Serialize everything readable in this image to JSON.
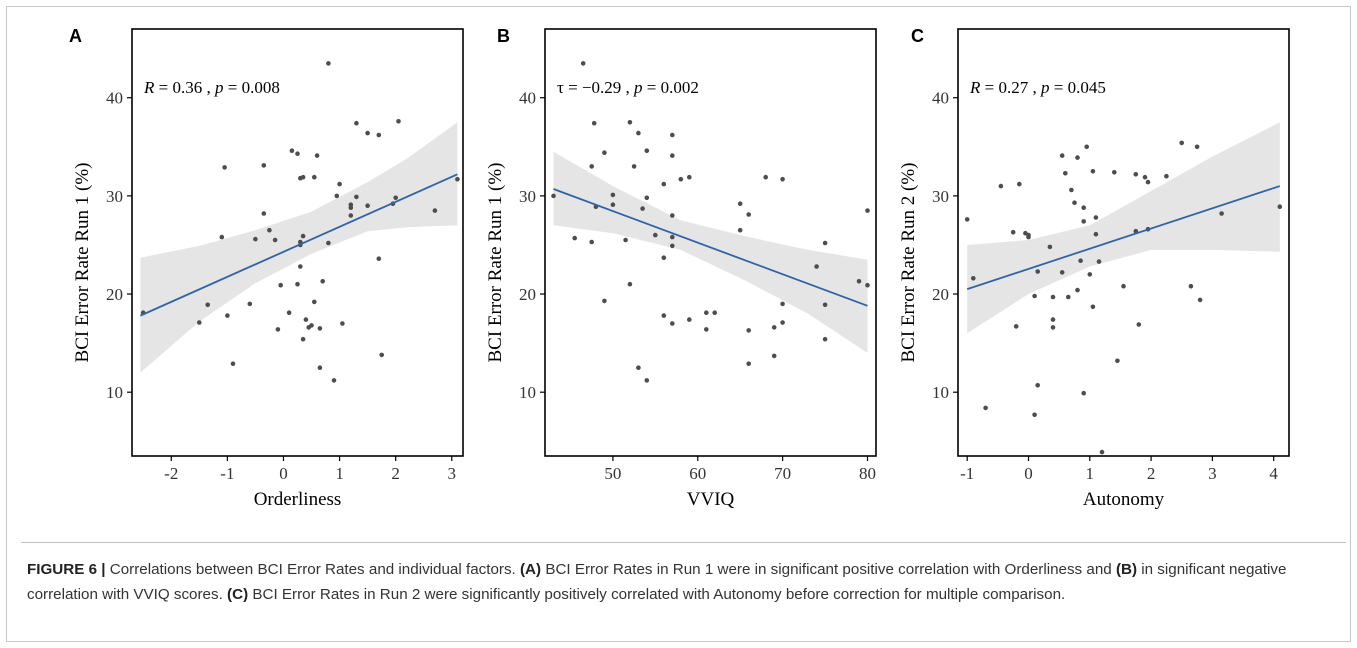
{
  "figure": {
    "caption_label": "FIGURE 6 |",
    "caption_parts": [
      {
        "t": " Correlations between BCI Error Rates and individual factors. "
      },
      {
        "t": "(A)",
        "b": true
      },
      {
        "t": " BCI Error Rates in Run 1 were in significant positive correlation with Orderliness and "
      },
      {
        "t": "(B)",
        "b": true
      },
      {
        "t": " in significant negative correlation with VVIQ scores. "
      },
      {
        "t": "(C)",
        "b": true
      },
      {
        "t": " BCI Error Rates in Run 2 were significantly positively correlated with Autonomy before correction for multiple comparison."
      }
    ]
  },
  "colors": {
    "point": "#4d4d4d",
    "fit_line": "#2f64a7",
    "ci_band": "#e5e5e5",
    "axis": "#000000"
  },
  "chart_data": [
    {
      "panel": "A",
      "type": "scatter",
      "xlabel": "Orderliness",
      "ylabel": "BCI Error Rate Run 1 (%)",
      "stat_sym": "R",
      "stat_val": "= 0.36 ,",
      "p_sym": "p",
      "p_val": "= 0.008",
      "xlim": [
        -2.7,
        3.2
      ],
      "ylim": [
        3.5,
        47
      ],
      "xticks": [
        -2,
        -1,
        0,
        1,
        2,
        3
      ],
      "xtick_labels": [
        "-2",
        "-1",
        "0",
        "1",
        "2",
        "3"
      ],
      "yticks": [
        10,
        20,
        30,
        40
      ],
      "ytick_labels": [
        "10",
        "20",
        "30",
        "40"
      ],
      "fit": {
        "x": [
          -2.55,
          3.1
        ],
        "y": [
          17.8,
          32.2
        ]
      },
      "ci": {
        "x": [
          -2.55,
          -1.5,
          -0.5,
          0.5,
          1.5,
          2.2,
          3.1
        ],
        "lower": [
          12.0,
          17.2,
          21.1,
          24.1,
          26.4,
          26.8,
          27.0
        ],
        "upper": [
          23.7,
          24.9,
          26.5,
          28.4,
          31.4,
          33.8,
          37.5
        ]
      },
      "points": [
        [
          -2.5,
          18.1
        ],
        [
          -1.5,
          17.1
        ],
        [
          -1.35,
          18.9
        ],
        [
          -1.1,
          25.8
        ],
        [
          -1.05,
          32.9
        ],
        [
          -1.0,
          17.8
        ],
        [
          -0.9,
          12.9
        ],
        [
          -0.6,
          19.0
        ],
        [
          -0.5,
          25.6
        ],
        [
          -0.35,
          33.1
        ],
        [
          -0.35,
          28.2
        ],
        [
          -0.25,
          26.5
        ],
        [
          -0.15,
          25.5
        ],
        [
          -0.1,
          16.4
        ],
        [
          -0.05,
          20.9
        ],
        [
          0.1,
          18.1
        ],
        [
          0.15,
          34.6
        ],
        [
          0.25,
          34.3
        ],
        [
          0.25,
          21.0
        ],
        [
          0.3,
          22.8
        ],
        [
          0.3,
          31.8
        ],
        [
          0.3,
          25.0
        ],
        [
          0.3,
          25.3
        ],
        [
          0.35,
          15.4
        ],
        [
          0.35,
          25.9
        ],
        [
          0.35,
          31.9
        ],
        [
          0.4,
          17.4
        ],
        [
          0.45,
          16.6
        ],
        [
          0.5,
          16.8
        ],
        [
          0.55,
          19.2
        ],
        [
          0.55,
          31.9
        ],
        [
          0.6,
          34.1
        ],
        [
          0.65,
          16.5
        ],
        [
          0.65,
          12.5
        ],
        [
          0.7,
          21.3
        ],
        [
          0.8,
          25.2
        ],
        [
          0.8,
          43.5
        ],
        [
          0.9,
          11.2
        ],
        [
          0.95,
          30.0
        ],
        [
          1.0,
          31.2
        ],
        [
          1.05,
          17.0
        ],
        [
          1.2,
          28.8
        ],
        [
          1.2,
          29.1
        ],
        [
          1.2,
          28.0
        ],
        [
          1.3,
          37.4
        ],
        [
          1.3,
          29.9
        ],
        [
          1.5,
          36.4
        ],
        [
          1.5,
          29.0
        ],
        [
          1.7,
          36.2
        ],
        [
          1.7,
          23.6
        ],
        [
          1.75,
          13.8
        ],
        [
          1.95,
          29.2
        ],
        [
          2.0,
          29.8
        ],
        [
          2.05,
          37.6
        ],
        [
          2.7,
          28.5
        ],
        [
          3.1,
          31.7
        ]
      ]
    },
    {
      "panel": "B",
      "type": "scatter",
      "xlabel": "VVIQ",
      "ylabel": "BCI Error Rate Run 1 (%)",
      "stat_sym": "τ",
      "stat_val": "= −0.29 ,",
      "p_sym": "p",
      "p_val": "= 0.002",
      "xlim": [
        42,
        81
      ],
      "ylim": [
        3.5,
        47
      ],
      "xticks": [
        50,
        60,
        70,
        80
      ],
      "xtick_labels": [
        "50",
        "60",
        "70",
        "80"
      ],
      "yticks": [
        10,
        20,
        30,
        40
      ],
      "ytick_labels": [
        "10",
        "20",
        "30",
        "40"
      ],
      "fit": {
        "x": [
          43,
          80
        ],
        "y": [
          30.7,
          18.8
        ]
      },
      "ci": {
        "x": [
          43,
          50,
          58,
          66,
          73,
          80
        ],
        "lower": [
          27.0,
          26.2,
          24.5,
          21.2,
          18.0,
          14.0
        ],
        "upper": [
          34.5,
          31.0,
          27.5,
          25.8,
          24.5,
          23.5
        ]
      },
      "points": [
        [
          43,
          30.0
        ],
        [
          45.5,
          25.7
        ],
        [
          46.5,
          43.5
        ],
        [
          47.5,
          25.3
        ],
        [
          47.5,
          33.0
        ],
        [
          47.8,
          37.4
        ],
        [
          48.0,
          28.9
        ],
        [
          49.0,
          19.3
        ],
        [
          49.0,
          34.4
        ],
        [
          50.0,
          30.1
        ],
        [
          50.0,
          29.1
        ],
        [
          51.5,
          25.5
        ],
        [
          52.0,
          37.5
        ],
        [
          52.0,
          21.0
        ],
        [
          52.5,
          33.0
        ],
        [
          53.0,
          36.4
        ],
        [
          53.0,
          12.5
        ],
        [
          53.5,
          28.7
        ],
        [
          54.0,
          34.6
        ],
        [
          54.0,
          29.8
        ],
        [
          54.0,
          11.2
        ],
        [
          55.0,
          26.0
        ],
        [
          56.0,
          31.2
        ],
        [
          56.0,
          23.7
        ],
        [
          56.0,
          17.8
        ],
        [
          57.0,
          36.2
        ],
        [
          57.0,
          34.1
        ],
        [
          57.0,
          28.0
        ],
        [
          57.0,
          25.8
        ],
        [
          57.0,
          24.9
        ],
        [
          57.0,
          17.0
        ],
        [
          58.0,
          31.7
        ],
        [
          59.0,
          31.9
        ],
        [
          59.0,
          17.4
        ],
        [
          61.0,
          18.1
        ],
        [
          61.0,
          16.4
        ],
        [
          62.0,
          18.1
        ],
        [
          65.0,
          29.2
        ],
        [
          65.0,
          26.5
        ],
        [
          66.0,
          28.1
        ],
        [
          66.0,
          16.3
        ],
        [
          66.0,
          12.9
        ],
        [
          68.0,
          31.9
        ],
        [
          69.0,
          16.6
        ],
        [
          69.0,
          13.7
        ],
        [
          70.0,
          31.7
        ],
        [
          70.0,
          19.0
        ],
        [
          70.0,
          17.1
        ],
        [
          74.0,
          22.8
        ],
        [
          75.0,
          25.2
        ],
        [
          75.0,
          18.9
        ],
        [
          75.0,
          15.4
        ],
        [
          79.0,
          21.3
        ],
        [
          80.0,
          28.5
        ],
        [
          80.0,
          20.9
        ]
      ]
    },
    {
      "panel": "C",
      "type": "scatter",
      "xlabel": "Autonomy",
      "ylabel": "BCI Error Rate Run 2 (%)",
      "stat_sym": "R",
      "stat_val": "= 0.27 ,",
      "p_sym": "p",
      "p_val": "= 0.045",
      "xlim": [
        -1.15,
        4.25
      ],
      "ylim": [
        3.5,
        47
      ],
      "xticks": [
        -1,
        0,
        1,
        2,
        3,
        4
      ],
      "xtick_labels": [
        "-1",
        "0",
        "1",
        "2",
        "3",
        "4"
      ],
      "yticks": [
        10,
        20,
        30,
        40
      ],
      "ytick_labels": [
        "10",
        "20",
        "30",
        "40"
      ],
      "fit": {
        "x": [
          -1.0,
          4.1
        ],
        "y": [
          20.5,
          31.0
        ]
      },
      "ci": {
        "x": [
          -1.0,
          0.0,
          1.0,
          2.0,
          3.0,
          4.1
        ],
        "lower": [
          16.0,
          20.0,
          22.8,
          24.5,
          24.5,
          24.3
        ],
        "upper": [
          25.0,
          25.5,
          27.0,
          30.5,
          34.0,
          37.5
        ]
      },
      "points": [
        [
          -1.0,
          27.6
        ],
        [
          -0.9,
          21.6
        ],
        [
          -0.7,
          8.4
        ],
        [
          -0.45,
          31.0
        ],
        [
          -0.25,
          26.3
        ],
        [
          -0.2,
          16.7
        ],
        [
          -0.15,
          31.2
        ],
        [
          -0.05,
          26.2
        ],
        [
          0.0,
          26.0
        ],
        [
          0.0,
          25.8
        ],
        [
          0.1,
          19.8
        ],
        [
          0.1,
          7.7
        ],
        [
          0.15,
          10.7
        ],
        [
          0.15,
          22.3
        ],
        [
          0.35,
          24.8
        ],
        [
          0.4,
          19.7
        ],
        [
          0.4,
          17.4
        ],
        [
          0.4,
          16.6
        ],
        [
          0.55,
          34.1
        ],
        [
          0.55,
          22.2
        ],
        [
          0.6,
          32.3
        ],
        [
          0.65,
          19.7
        ],
        [
          0.7,
          30.6
        ],
        [
          0.75,
          29.3
        ],
        [
          0.8,
          20.4
        ],
        [
          0.8,
          33.9
        ],
        [
          0.85,
          23.4
        ],
        [
          0.9,
          28.8
        ],
        [
          0.9,
          27.4
        ],
        [
          0.9,
          9.9
        ],
        [
          0.95,
          35.0
        ],
        [
          1.0,
          22.0
        ],
        [
          1.05,
          32.5
        ],
        [
          1.05,
          18.7
        ],
        [
          1.1,
          27.8
        ],
        [
          1.1,
          26.1
        ],
        [
          1.15,
          23.3
        ],
        [
          1.2,
          3.9
        ],
        [
          1.4,
          32.4
        ],
        [
          1.45,
          13.2
        ],
        [
          1.55,
          20.8
        ],
        [
          1.75,
          32.2
        ],
        [
          1.75,
          26.4
        ],
        [
          1.8,
          16.9
        ],
        [
          1.9,
          31.9
        ],
        [
          1.95,
          31.4
        ],
        [
          1.95,
          26.6
        ],
        [
          2.25,
          32.0
        ],
        [
          2.5,
          35.4
        ],
        [
          2.65,
          20.8
        ],
        [
          2.75,
          35.0
        ],
        [
          2.8,
          19.4
        ],
        [
          3.15,
          28.2
        ],
        [
          4.1,
          28.9
        ]
      ]
    }
  ]
}
